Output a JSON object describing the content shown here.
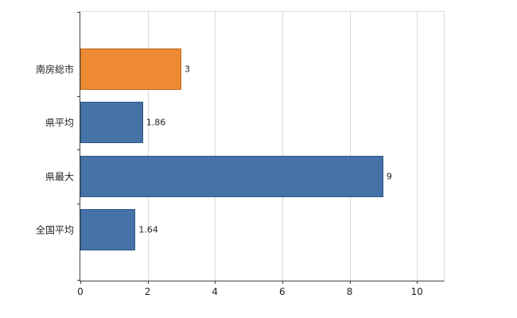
{
  "chart_data": {
    "type": "bar",
    "orientation": "horizontal",
    "title": "",
    "xlabel": "",
    "ylabel": "",
    "categories": [
      "南房総市",
      "県平均",
      "県最大",
      "全国平均"
    ],
    "values": [
      3,
      1.86,
      9,
      1.64
    ],
    "value_labels": [
      "3",
      "1.86",
      "9",
      "1.64"
    ],
    "bar_colors": [
      "#ED8A33",
      "#4572A7",
      "#4572A7",
      "#4572A7"
    ],
    "bar_border_colors": [
      "#B96A1F",
      "#2E5785",
      "#2E5785",
      "#2E5785"
    ],
    "xlim": [
      0,
      10.8
    ],
    "xticks": [
      0,
      2,
      4,
      6,
      8,
      10
    ],
    "xtick_labels": [
      "0",
      "2",
      "4",
      "6",
      "8",
      "10"
    ],
    "grid": "vertical",
    "legend": "none",
    "colors": {
      "grid": "#d9d9d9",
      "axis": "#404040",
      "text": "#222222",
      "background": "#ffffff"
    }
  }
}
